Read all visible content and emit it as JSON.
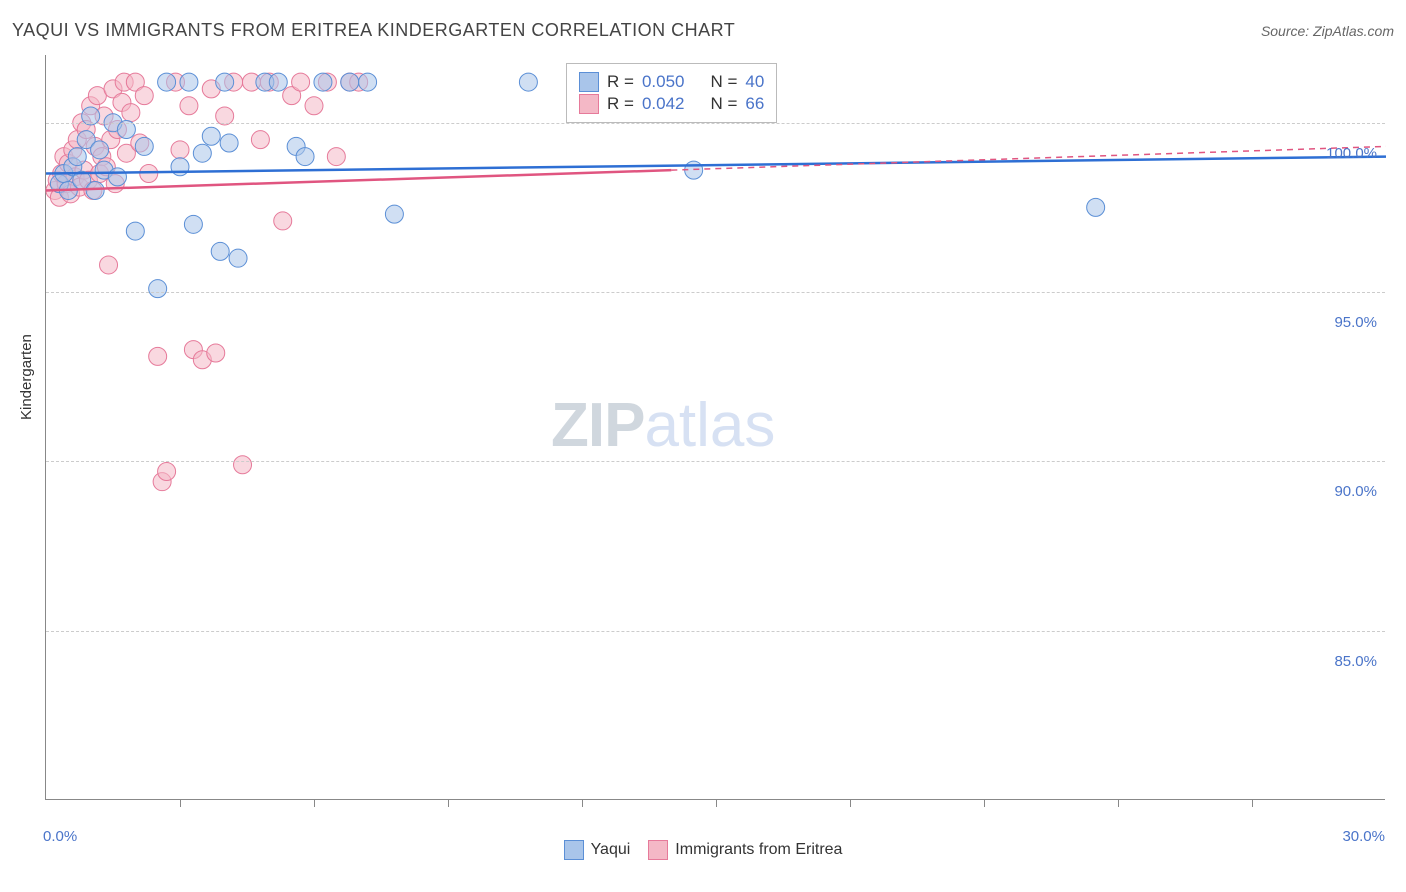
{
  "header": {
    "title": "YAQUI VS IMMIGRANTS FROM ERITREA KINDERGARTEN CORRELATION CHART",
    "source_prefix": "Source: ",
    "source_name": "ZipAtlas.com"
  },
  "chart": {
    "type": "scatter",
    "ylabel": "Kindergarten",
    "xlim": [
      0,
      30
    ],
    "ylim": [
      80,
      102
    ],
    "ytick_labels": [
      "85.0%",
      "90.0%",
      "95.0%",
      "100.0%"
    ],
    "ytick_values": [
      85,
      90,
      95,
      100
    ],
    "xtick_labels": [
      "0.0%",
      "30.0%"
    ],
    "xtick_values": [
      0,
      30
    ],
    "xtick_minor": [
      3,
      6,
      9,
      12,
      15,
      18,
      21,
      24,
      27
    ],
    "grid_color": "#cccccc",
    "axis_color": "#888888",
    "background_color": "#ffffff",
    "marker_radius": 9,
    "marker_opacity": 0.55,
    "series": [
      {
        "name": "Yaqui",
        "color_fill": "#a9c5ea",
        "color_stroke": "#5b8fd6",
        "line_color": "#2e6fd4",
        "r_value": "0.050",
        "n_value": "40",
        "trend": {
          "x1": 0,
          "y1": 98.5,
          "x2": 30,
          "y2": 99.0
        },
        "points": [
          [
            0.3,
            98.2
          ],
          [
            0.4,
            98.5
          ],
          [
            0.5,
            98.0
          ],
          [
            0.6,
            98.7
          ],
          [
            0.7,
            99.0
          ],
          [
            0.8,
            98.3
          ],
          [
            0.9,
            99.5
          ],
          [
            1.0,
            100.2
          ],
          [
            1.1,
            98.0
          ],
          [
            1.2,
            99.2
          ],
          [
            1.3,
            98.6
          ],
          [
            1.5,
            100.0
          ],
          [
            1.6,
            98.4
          ],
          [
            1.8,
            99.8
          ],
          [
            2.0,
            96.8
          ],
          [
            2.2,
            99.3
          ],
          [
            2.5,
            95.1
          ],
          [
            2.7,
            101.2
          ],
          [
            3.0,
            98.7
          ],
          [
            3.2,
            101.2
          ],
          [
            3.3,
            97.0
          ],
          [
            3.5,
            99.1
          ],
          [
            3.7,
            99.6
          ],
          [
            3.9,
            96.2
          ],
          [
            4.0,
            101.2
          ],
          [
            4.1,
            99.4
          ],
          [
            4.3,
            96.0
          ],
          [
            4.9,
            101.2
          ],
          [
            5.2,
            101.2
          ],
          [
            5.6,
            99.3
          ],
          [
            5.8,
            99.0
          ],
          [
            6.2,
            101.2
          ],
          [
            6.8,
            101.2
          ],
          [
            7.2,
            101.2
          ],
          [
            7.8,
            97.3
          ],
          [
            10.8,
            101.2
          ],
          [
            14.5,
            98.6
          ],
          [
            23.5,
            97.5
          ]
        ]
      },
      {
        "name": "Immigrants from Eritrea",
        "color_fill": "#f4b8c6",
        "color_stroke": "#e67a9a",
        "line_color": "#e05580",
        "r_value": "0.042",
        "n_value": "66",
        "trend": {
          "x1": 0,
          "y1": 98.0,
          "x2": 14,
          "y2": 98.6
        },
        "trend_ext": {
          "x1": 14,
          "y1": 98.6,
          "x2": 30,
          "y2": 99.3
        },
        "points": [
          [
            0.2,
            98.0
          ],
          [
            0.25,
            98.3
          ],
          [
            0.3,
            97.8
          ],
          [
            0.35,
            98.5
          ],
          [
            0.4,
            99.0
          ],
          [
            0.45,
            98.2
          ],
          [
            0.5,
            98.8
          ],
          [
            0.55,
            97.9
          ],
          [
            0.6,
            99.2
          ],
          [
            0.65,
            98.4
          ],
          [
            0.7,
            99.5
          ],
          [
            0.75,
            98.1
          ],
          [
            0.8,
            100.0
          ],
          [
            0.85,
            98.6
          ],
          [
            0.9,
            99.8
          ],
          [
            0.95,
            98.3
          ],
          [
            1.0,
            100.5
          ],
          [
            1.05,
            98.0
          ],
          [
            1.1,
            99.3
          ],
          [
            1.15,
            100.8
          ],
          [
            1.2,
            98.5
          ],
          [
            1.25,
            99.0
          ],
          [
            1.3,
            100.2
          ],
          [
            1.35,
            98.7
          ],
          [
            1.4,
            95.8
          ],
          [
            1.45,
            99.5
          ],
          [
            1.5,
            101.0
          ],
          [
            1.55,
            98.2
          ],
          [
            1.6,
            99.8
          ],
          [
            1.7,
            100.6
          ],
          [
            1.75,
            101.2
          ],
          [
            1.8,
            99.1
          ],
          [
            1.9,
            100.3
          ],
          [
            2.0,
            101.2
          ],
          [
            2.1,
            99.4
          ],
          [
            2.2,
            100.8
          ],
          [
            2.3,
            98.5
          ],
          [
            2.5,
            93.1
          ],
          [
            2.6,
            89.4
          ],
          [
            2.7,
            89.7
          ],
          [
            2.9,
            101.2
          ],
          [
            3.0,
            99.2
          ],
          [
            3.2,
            100.5
          ],
          [
            3.3,
            93.3
          ],
          [
            3.5,
            93.0
          ],
          [
            3.7,
            101.0
          ],
          [
            3.8,
            93.2
          ],
          [
            4.0,
            100.2
          ],
          [
            4.2,
            101.2
          ],
          [
            4.4,
            89.9
          ],
          [
            4.6,
            101.2
          ],
          [
            4.8,
            99.5
          ],
          [
            5.0,
            101.2
          ],
          [
            5.3,
            97.1
          ],
          [
            5.5,
            100.8
          ],
          [
            5.7,
            101.2
          ],
          [
            6.0,
            100.5
          ],
          [
            6.3,
            101.2
          ],
          [
            6.5,
            99.0
          ],
          [
            6.8,
            101.2
          ],
          [
            7.0,
            101.2
          ]
        ]
      }
    ],
    "stats_legend": {
      "r_label": "R =",
      "n_label": "N ="
    },
    "bottom_legend": {
      "series1": "Yaqui",
      "series2": "Immigrants from Eritrea"
    },
    "watermark": {
      "part1": "ZIP",
      "part2": "atlas"
    },
    "label_color": "#4a74c9",
    "label_fontsize": 15
  }
}
